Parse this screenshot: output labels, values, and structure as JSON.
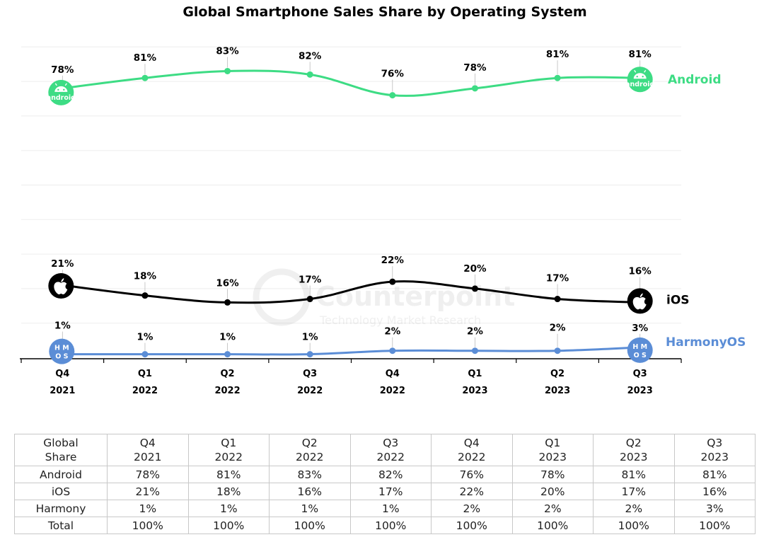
{
  "chart_data": {
    "type": "line",
    "title": "Global Smartphone Sales Share by Operating System",
    "categories": [
      {
        "quarter": "Q4",
        "year": "2021"
      },
      {
        "quarter": "Q1",
        "year": "2022"
      },
      {
        "quarter": "Q2",
        "year": "2022"
      },
      {
        "quarter": "Q3",
        "year": "2022"
      },
      {
        "quarter": "Q4",
        "year": "2022"
      },
      {
        "quarter": "Q1",
        "year": "2023"
      },
      {
        "quarter": "Q2",
        "year": "2023"
      },
      {
        "quarter": "Q3",
        "year": "2023"
      }
    ],
    "series": [
      {
        "name": "Android",
        "color": "#3ddc84",
        "values": [
          78,
          81,
          83,
          82,
          76,
          78,
          81,
          81
        ],
        "labels": [
          "78%",
          "81%",
          "83%",
          "82%",
          "76%",
          "78%",
          "81%",
          "81%"
        ]
      },
      {
        "name": "iOS",
        "color": "#000000",
        "values": [
          21,
          18,
          16,
          17,
          22,
          20,
          17,
          16
        ],
        "labels": [
          "21%",
          "18%",
          "16%",
          "17%",
          "22%",
          "20%",
          "17%",
          "16%"
        ]
      },
      {
        "name": "HarmonyOS",
        "color": "#5b8dd6",
        "values": [
          1,
          1,
          1,
          1,
          2,
          2,
          2,
          3
        ],
        "labels": [
          "1%",
          "1%",
          "1%",
          "1%",
          "2%",
          "2%",
          "2%",
          "3%"
        ]
      }
    ],
    "ylim": [
      0,
      90
    ],
    "grid": true,
    "watermark": {
      "name": "Counterpoint",
      "tagline": "Technology Market Research"
    },
    "logos": {
      "android": "android",
      "harmony_top": "H M",
      "harmony_bottom": "O S"
    }
  },
  "table": {
    "header_label": [
      "Global",
      "Share"
    ],
    "columns": [
      [
        "Q4",
        "2021"
      ],
      [
        "Q1",
        "2022"
      ],
      [
        "Q2",
        "2022"
      ],
      [
        "Q3",
        "2022"
      ],
      [
        "Q4",
        "2022"
      ],
      [
        "Q1",
        "2023"
      ],
      [
        "Q2",
        "2023"
      ],
      [
        "Q3",
        "2023"
      ]
    ],
    "rows": [
      {
        "label": "Android",
        "cells": [
          "78%",
          "81%",
          "83%",
          "82%",
          "76%",
          "78%",
          "81%",
          "81%"
        ]
      },
      {
        "label": "iOS",
        "cells": [
          "21%",
          "18%",
          "16%",
          "17%",
          "22%",
          "20%",
          "17%",
          "16%"
        ]
      },
      {
        "label": "Harmony",
        "cells": [
          "1%",
          "1%",
          "1%",
          "1%",
          "2%",
          "2%",
          "2%",
          "3%"
        ]
      },
      {
        "label": "Total",
        "cells": [
          "100%",
          "100%",
          "100%",
          "100%",
          "100%",
          "100%",
          "100%",
          "100%"
        ]
      }
    ]
  }
}
